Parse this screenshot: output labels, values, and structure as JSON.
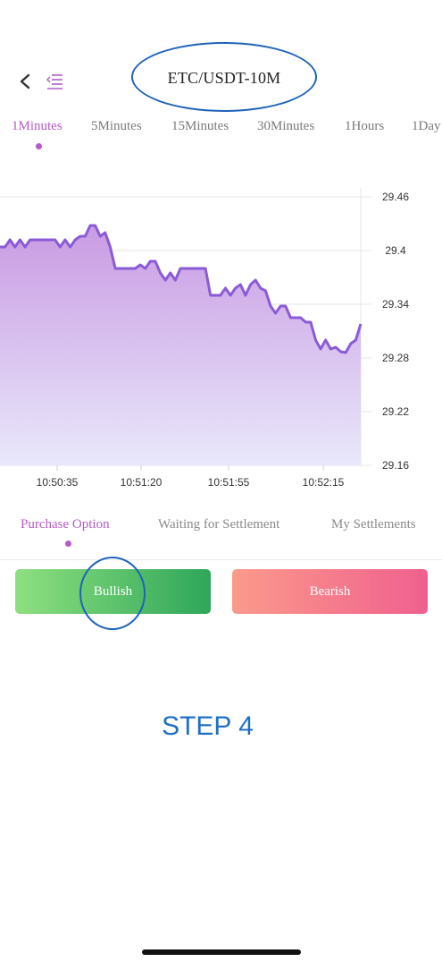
{
  "header": {
    "title": "ETC/USDT-10M",
    "back_icon": "chevron-left-icon",
    "menu_icon": "list-menu-icon"
  },
  "intervals": [
    {
      "label": "1Minutes",
      "active": true
    },
    {
      "label": "5Minutes",
      "active": false
    },
    {
      "label": "15Minutes",
      "active": false
    },
    {
      "label": "30Minutes",
      "active": false
    },
    {
      "label": "1Hours",
      "active": false
    },
    {
      "label": "1Day",
      "active": false
    }
  ],
  "chart_data": {
    "type": "area",
    "ylim": [
      29.16,
      29.46
    ],
    "yticks": [
      "29.46",
      "29.4",
      "29.34",
      "29.28",
      "29.22",
      "29.16"
    ],
    "xticks": [
      "10:50:35",
      "10:51:20",
      "10:51:55",
      "10:52:15"
    ],
    "series": [
      {
        "values": [
          29.404,
          29.404,
          29.412,
          29.404,
          29.412,
          29.404,
          29.412,
          29.412,
          29.412,
          29.412,
          29.412,
          29.412,
          29.404,
          29.412,
          29.404,
          29.412,
          29.416,
          29.416,
          29.428,
          29.428,
          29.416,
          29.42,
          29.404,
          29.38,
          29.38,
          29.38,
          29.38,
          29.38,
          29.384,
          29.38,
          29.388,
          29.388,
          29.375,
          29.367,
          29.375,
          29.367,
          29.38,
          29.38,
          29.38,
          29.38,
          29.38,
          29.38,
          29.35,
          29.35,
          29.35,
          29.358,
          29.35,
          29.358,
          29.362,
          29.35,
          29.362,
          29.367,
          29.358,
          29.355,
          29.338,
          29.33,
          29.338,
          29.338,
          29.325,
          29.325,
          29.325,
          29.32,
          29.32,
          29.3,
          29.29,
          29.3,
          29.29,
          29.292,
          29.287,
          29.286,
          29.296,
          29.3,
          29.318
        ]
      }
    ],
    "line_color": "#8a5bd6",
    "fill_top": "#c99be3",
    "fill_bottom": "#e9e8fb",
    "grid": true
  },
  "order_tabs": [
    {
      "label": "Purchase Option",
      "active": true
    },
    {
      "label": "Waiting for Settlement",
      "active": false
    },
    {
      "label": "My Settlements",
      "active": false
    }
  ],
  "buttons": {
    "bullish": "Bullish",
    "bearish": "Bearish"
  },
  "annotation": {
    "step": "STEP 4",
    "ring_color": "#1f63b8"
  }
}
